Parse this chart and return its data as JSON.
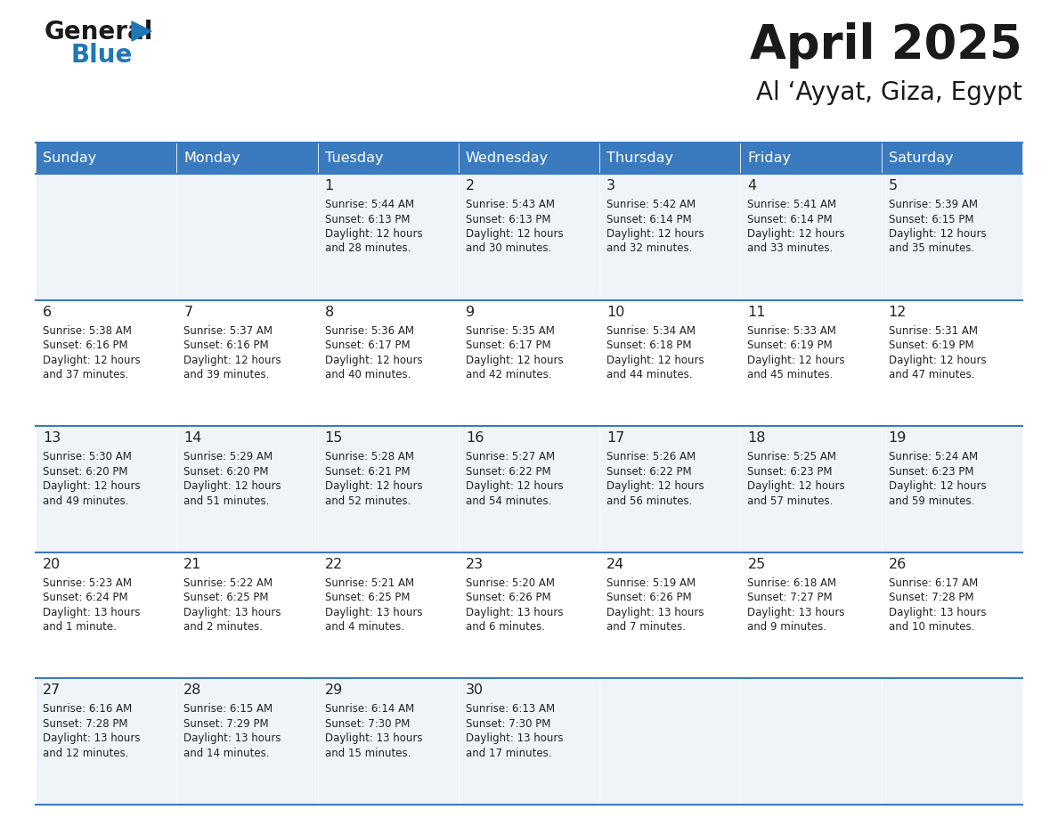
{
  "title": "April 2025",
  "subtitle": "Al ‘Ayyat, Giza, Egypt",
  "header_bg": "#3a7abf",
  "header_text": "#ffffff",
  "day_headers": [
    "Sunday",
    "Monday",
    "Tuesday",
    "Wednesday",
    "Thursday",
    "Friday",
    "Saturday"
  ],
  "row_colors": [
    "#f0f4f8",
    "#ffffff"
  ],
  "border_color": "#3a7abf",
  "text_color": "#333333",
  "cell_text_color": "#222222",
  "days": [
    {
      "day": 1,
      "col": 2,
      "row": 0,
      "sunrise": "5:44 AM",
      "sunset": "6:13 PM",
      "daylight": "12 hours and 28 minutes."
    },
    {
      "day": 2,
      "col": 3,
      "row": 0,
      "sunrise": "5:43 AM",
      "sunset": "6:13 PM",
      "daylight": "12 hours and 30 minutes."
    },
    {
      "day": 3,
      "col": 4,
      "row": 0,
      "sunrise": "5:42 AM",
      "sunset": "6:14 PM",
      "daylight": "12 hours and 32 minutes."
    },
    {
      "day": 4,
      "col": 5,
      "row": 0,
      "sunrise": "5:41 AM",
      "sunset": "6:14 PM",
      "daylight": "12 hours and 33 minutes."
    },
    {
      "day": 5,
      "col": 6,
      "row": 0,
      "sunrise": "5:39 AM",
      "sunset": "6:15 PM",
      "daylight": "12 hours and 35 minutes."
    },
    {
      "day": 6,
      "col": 0,
      "row": 1,
      "sunrise": "5:38 AM",
      "sunset": "6:16 PM",
      "daylight": "12 hours and 37 minutes."
    },
    {
      "day": 7,
      "col": 1,
      "row": 1,
      "sunrise": "5:37 AM",
      "sunset": "6:16 PM",
      "daylight": "12 hours and 39 minutes."
    },
    {
      "day": 8,
      "col": 2,
      "row": 1,
      "sunrise": "5:36 AM",
      "sunset": "6:17 PM",
      "daylight": "12 hours and 40 minutes."
    },
    {
      "day": 9,
      "col": 3,
      "row": 1,
      "sunrise": "5:35 AM",
      "sunset": "6:17 PM",
      "daylight": "12 hours and 42 minutes."
    },
    {
      "day": 10,
      "col": 4,
      "row": 1,
      "sunrise": "5:34 AM",
      "sunset": "6:18 PM",
      "daylight": "12 hours and 44 minutes."
    },
    {
      "day": 11,
      "col": 5,
      "row": 1,
      "sunrise": "5:33 AM",
      "sunset": "6:19 PM",
      "daylight": "12 hours and 45 minutes."
    },
    {
      "day": 12,
      "col": 6,
      "row": 1,
      "sunrise": "5:31 AM",
      "sunset": "6:19 PM",
      "daylight": "12 hours and 47 minutes."
    },
    {
      "day": 13,
      "col": 0,
      "row": 2,
      "sunrise": "5:30 AM",
      "sunset": "6:20 PM",
      "daylight": "12 hours and 49 minutes."
    },
    {
      "day": 14,
      "col": 1,
      "row": 2,
      "sunrise": "5:29 AM",
      "sunset": "6:20 PM",
      "daylight": "12 hours and 51 minutes."
    },
    {
      "day": 15,
      "col": 2,
      "row": 2,
      "sunrise": "5:28 AM",
      "sunset": "6:21 PM",
      "daylight": "12 hours and 52 minutes."
    },
    {
      "day": 16,
      "col": 3,
      "row": 2,
      "sunrise": "5:27 AM",
      "sunset": "6:22 PM",
      "daylight": "12 hours and 54 minutes."
    },
    {
      "day": 17,
      "col": 4,
      "row": 2,
      "sunrise": "5:26 AM",
      "sunset": "6:22 PM",
      "daylight": "12 hours and 56 minutes."
    },
    {
      "day": 18,
      "col": 5,
      "row": 2,
      "sunrise": "5:25 AM",
      "sunset": "6:23 PM",
      "daylight": "12 hours and 57 minutes."
    },
    {
      "day": 19,
      "col": 6,
      "row": 2,
      "sunrise": "5:24 AM",
      "sunset": "6:23 PM",
      "daylight": "12 hours and 59 minutes."
    },
    {
      "day": 20,
      "col": 0,
      "row": 3,
      "sunrise": "5:23 AM",
      "sunset": "6:24 PM",
      "daylight": "13 hours and 1 minute."
    },
    {
      "day": 21,
      "col": 1,
      "row": 3,
      "sunrise": "5:22 AM",
      "sunset": "6:25 PM",
      "daylight": "13 hours and 2 minutes."
    },
    {
      "day": 22,
      "col": 2,
      "row": 3,
      "sunrise": "5:21 AM",
      "sunset": "6:25 PM",
      "daylight": "13 hours and 4 minutes."
    },
    {
      "day": 23,
      "col": 3,
      "row": 3,
      "sunrise": "5:20 AM",
      "sunset": "6:26 PM",
      "daylight": "13 hours and 6 minutes."
    },
    {
      "day": 24,
      "col": 4,
      "row": 3,
      "sunrise": "5:19 AM",
      "sunset": "6:26 PM",
      "daylight": "13 hours and 7 minutes."
    },
    {
      "day": 25,
      "col": 5,
      "row": 3,
      "sunrise": "6:18 AM",
      "sunset": "7:27 PM",
      "daylight": "13 hours and 9 minutes."
    },
    {
      "day": 26,
      "col": 6,
      "row": 3,
      "sunrise": "6:17 AM",
      "sunset": "7:28 PM",
      "daylight": "13 hours and 10 minutes."
    },
    {
      "day": 27,
      "col": 0,
      "row": 4,
      "sunrise": "6:16 AM",
      "sunset": "7:28 PM",
      "daylight": "13 hours and 12 minutes."
    },
    {
      "day": 28,
      "col": 1,
      "row": 4,
      "sunrise": "6:15 AM",
      "sunset": "7:29 PM",
      "daylight": "13 hours and 14 minutes."
    },
    {
      "day": 29,
      "col": 2,
      "row": 4,
      "sunrise": "6:14 AM",
      "sunset": "7:30 PM",
      "daylight": "13 hours and 15 minutes."
    },
    {
      "day": 30,
      "col": 3,
      "row": 4,
      "sunrise": "6:13 AM",
      "sunset": "7:30 PM",
      "daylight": "13 hours and 17 minutes."
    }
  ],
  "num_rows": 5,
  "num_cols": 7,
  "logo_general_color": "#1a1a1a",
  "logo_blue_color": "#2077b8",
  "logo_triangle_color": "#2077b8"
}
